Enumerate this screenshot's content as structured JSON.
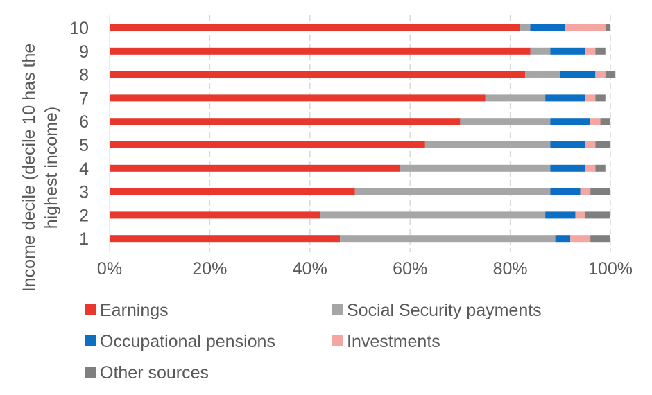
{
  "chart_data": {
    "type": "bar",
    "orientation": "horizontal",
    "stacked": "percent",
    "ylabel_lines": [
      "Income decile (decile 10 has the",
      "highest income)"
    ],
    "categories": [
      "10",
      "9",
      "8",
      "7",
      "6",
      "5",
      "4",
      "3",
      "2",
      "1"
    ],
    "x_ticks": [
      "0%",
      "20%",
      "40%",
      "60%",
      "80%",
      "100%"
    ],
    "xlim": [
      0,
      100
    ],
    "grid": "vertical dashed",
    "legend_placement": "bottom",
    "series": [
      {
        "name": "Earnings",
        "color": "#e8372c",
        "values": [
          82,
          84,
          83,
          75,
          70,
          63,
          58,
          49,
          42,
          46
        ]
      },
      {
        "name": "Social Security payments",
        "color": "#a6a6a6",
        "values": [
          2,
          4,
          7,
          12,
          18,
          25,
          30,
          39,
          45,
          43
        ]
      },
      {
        "name": "Occupational pensions",
        "color": "#0d6fc4",
        "values": [
          7,
          7,
          7,
          8,
          8,
          7,
          7,
          6,
          6,
          3
        ]
      },
      {
        "name": "Investments",
        "color": "#f4a6a2",
        "values": [
          8,
          2,
          2,
          2,
          2,
          2,
          2,
          2,
          2,
          4
        ]
      },
      {
        "name": "Other sources",
        "color": "#7f7f7f",
        "values": [
          1,
          2,
          2,
          2,
          2,
          3,
          2,
          4,
          5,
          4
        ]
      }
    ]
  }
}
